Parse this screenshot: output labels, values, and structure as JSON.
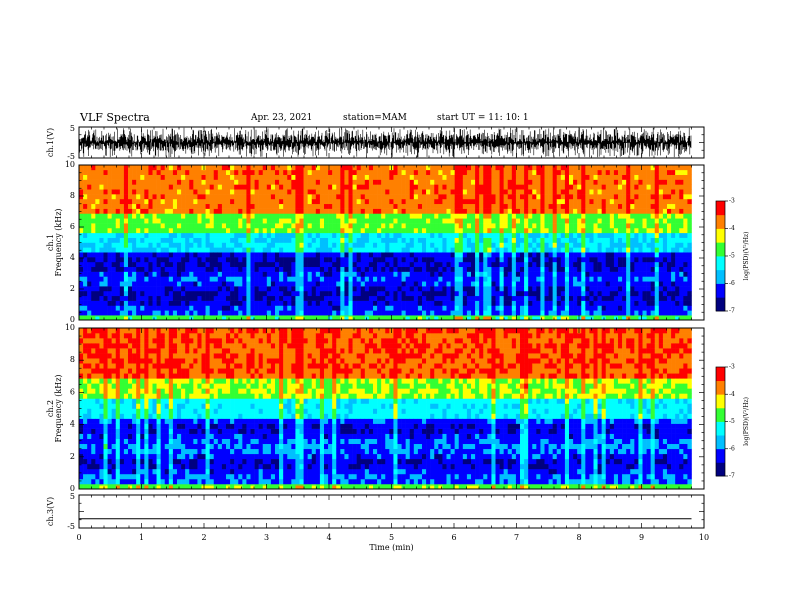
{
  "header": {
    "title": "VLF Spectra",
    "date": "Apr. 23, 2021",
    "station": "station=MAM",
    "start": "start  UT =   11: 10: 1"
  },
  "chart_data": [
    {
      "type": "line",
      "panel": "waveform-ch1",
      "ylabel": "ch.1(V)",
      "ylim": [
        -5,
        5
      ],
      "ytick_labels": [
        "-5",
        "5"
      ],
      "description_values": {
        "min": -5,
        "max": 5
      },
      "color": "#000000"
    },
    {
      "type": "heatmap",
      "panel": "spectrogram-ch1",
      "ylabel": "ch.1\nFrequency (kHz)",
      "ylim": [
        0,
        10
      ],
      "yticks": [
        0,
        2,
        4,
        6,
        8,
        10
      ],
      "xlim": [
        0,
        9.8
      ],
      "colorbar": {
        "label": "log(PSD)(V^2/Hz)",
        "range": [
          -7,
          -3
        ],
        "ticks": [
          -7,
          -6,
          -5,
          -4,
          -3
        ]
      }
    },
    {
      "type": "heatmap",
      "panel": "spectrogram-ch2",
      "ylabel": "ch.2\nFrequency (kHz)",
      "ylim": [
        0,
        10
      ],
      "yticks": [
        0,
        2,
        4,
        6,
        8,
        10
      ],
      "xlim": [
        0,
        9.8
      ],
      "colorbar": {
        "label": "log(PSD)(V^2/Hz)",
        "range": [
          -7,
          -3
        ],
        "ticks": [
          -7,
          -6,
          -5,
          -4,
          -3
        ]
      }
    },
    {
      "type": "line",
      "panel": "waveform-ch3",
      "ylabel": "ch.3(V)",
      "ylim": [
        -5,
        5
      ],
      "ytick_labels": [
        "5",
        "-5"
      ],
      "series": [
        {
          "x": [
            0,
            9.8
          ],
          "y": [
            -2.2,
            -2.2
          ]
        }
      ]
    }
  ],
  "xaxis": {
    "label": "Time (min)",
    "ticks": [
      0,
      1,
      2,
      3,
      4,
      5,
      6,
      7,
      8,
      9,
      10
    ],
    "range": [
      0,
      10
    ]
  },
  "colorbar_labels": {
    "cb1": "log(PSD)(V²/Hz)",
    "cb2": "log(PSD)(V²/Hz)"
  },
  "colormap": [
    "#00007f",
    "#0000ff",
    "#00bfff",
    "#00ffff",
    "#33ff33",
    "#ffff00",
    "#ff8000",
    "#ff0000",
    "#ffc0c0"
  ]
}
